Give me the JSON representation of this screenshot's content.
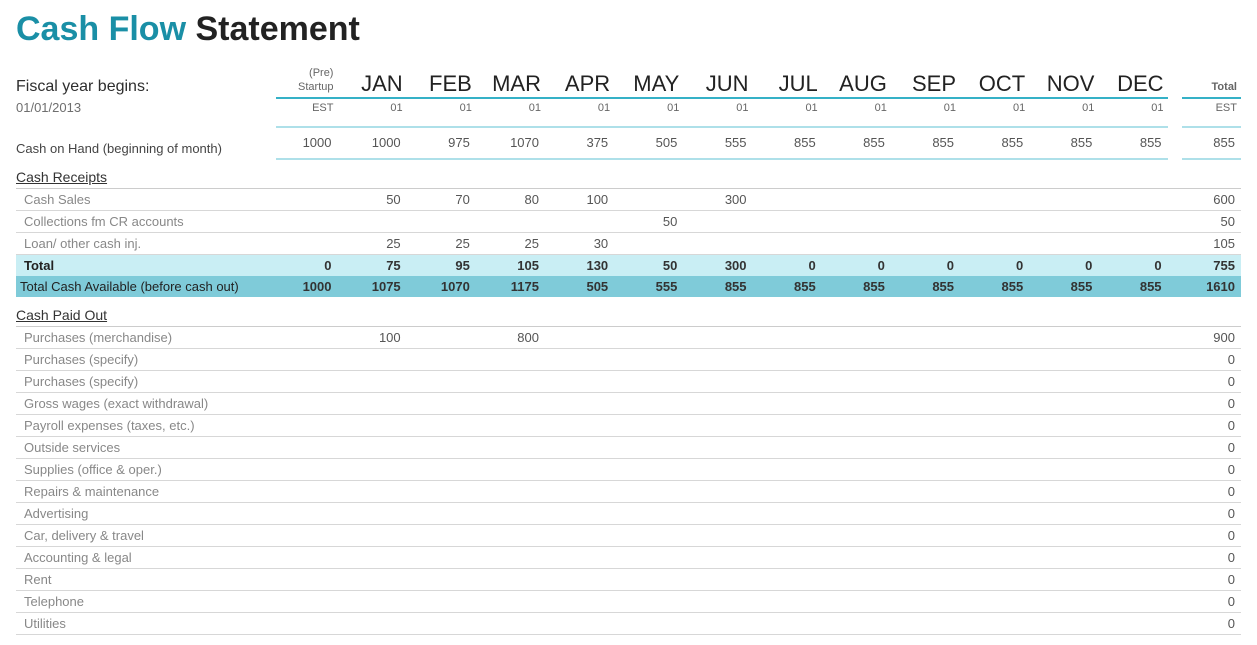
{
  "title": {
    "part1": "Cash Flow",
    "part2": " Statement"
  },
  "fiscal_year_label": "Fiscal year begins:",
  "fiscal_year_date": "01/01/2013",
  "columns": {
    "pre": {
      "line1": "(Pre)",
      "line2": "Startup",
      "sub": "EST"
    },
    "months": [
      "JAN",
      "FEB",
      "MAR",
      "APR",
      "MAY",
      "JUN",
      "JUL",
      "AUG",
      "SEP",
      "OCT",
      "NOV",
      "DEC"
    ],
    "month_sub": "01",
    "total": {
      "top": "Total",
      "sub": "EST"
    }
  },
  "cash_on_hand": {
    "label": "Cash on Hand (beginning of month)",
    "values": [
      "1000",
      "1000",
      "975",
      "1070",
      "375",
      "505",
      "555",
      "855",
      "855",
      "855",
      "855",
      "855",
      "855"
    ],
    "total": "855"
  },
  "cash_receipts": {
    "section_label": "Cash Receipts",
    "rows": [
      {
        "label": "Cash Sales",
        "values": [
          "",
          "50",
          "70",
          "80",
          "100",
          "",
          "300",
          "",
          "",
          "",
          "",
          "",
          ""
        ],
        "total": "600"
      },
      {
        "label": "Collections fm CR accounts",
        "values": [
          "",
          "",
          "",
          "",
          "",
          "50",
          "",
          "",
          "",
          "",
          "",
          "",
          ""
        ],
        "total": "50"
      },
      {
        "label": "Loan/ other cash inj.",
        "values": [
          "",
          "25",
          "25",
          "25",
          "30",
          "",
          "",
          "",
          "",
          "",
          "",
          "",
          ""
        ],
        "total": "105"
      }
    ],
    "subtotal": {
      "label": "Total",
      "values": [
        "0",
        "75",
        "95",
        "105",
        "130",
        "50",
        "300",
        "0",
        "0",
        "0",
        "0",
        "0",
        "0"
      ],
      "total": "755"
    },
    "avail": {
      "label": "Total Cash Available (before cash out)",
      "values": [
        "1000",
        "1075",
        "1070",
        "1175",
        "505",
        "555",
        "855",
        "855",
        "855",
        "855",
        "855",
        "855",
        "855"
      ],
      "total": "1610"
    }
  },
  "cash_paid_out": {
    "section_label": "Cash Paid Out",
    "rows": [
      {
        "label": "Purchases (merchandise)",
        "values": [
          "",
          "100",
          "",
          "800",
          "",
          "",
          "",
          "",
          "",
          "",
          "",
          "",
          ""
        ],
        "total": "900"
      },
      {
        "label": "Purchases (specify)",
        "values": [
          "",
          "",
          "",
          "",
          "",
          "",
          "",
          "",
          "",
          "",
          "",
          "",
          ""
        ],
        "total": "0"
      },
      {
        "label": "Purchases (specify)",
        "values": [
          "",
          "",
          "",
          "",
          "",
          "",
          "",
          "",
          "",
          "",
          "",
          "",
          ""
        ],
        "total": "0"
      },
      {
        "label": "Gross wages (exact withdrawal)",
        "values": [
          "",
          "",
          "",
          "",
          "",
          "",
          "",
          "",
          "",
          "",
          "",
          "",
          ""
        ],
        "total": "0"
      },
      {
        "label": "Payroll expenses (taxes, etc.)",
        "values": [
          "",
          "",
          "",
          "",
          "",
          "",
          "",
          "",
          "",
          "",
          "",
          "",
          ""
        ],
        "total": "0"
      },
      {
        "label": "Outside services",
        "values": [
          "",
          "",
          "",
          "",
          "",
          "",
          "",
          "",
          "",
          "",
          "",
          "",
          ""
        ],
        "total": "0"
      },
      {
        "label": "Supplies (office & oper.)",
        "values": [
          "",
          "",
          "",
          "",
          "",
          "",
          "",
          "",
          "",
          "",
          "",
          "",
          ""
        ],
        "total": "0"
      },
      {
        "label": "Repairs & maintenance",
        "values": [
          "",
          "",
          "",
          "",
          "",
          "",
          "",
          "",
          "",
          "",
          "",
          "",
          ""
        ],
        "total": "0"
      },
      {
        "label": "Advertising",
        "values": [
          "",
          "",
          "",
          "",
          "",
          "",
          "",
          "",
          "",
          "",
          "",
          "",
          ""
        ],
        "total": "0"
      },
      {
        "label": "Car, delivery & travel",
        "values": [
          "",
          "",
          "",
          "",
          "",
          "",
          "",
          "",
          "",
          "",
          "",
          "",
          ""
        ],
        "total": "0"
      },
      {
        "label": "Accounting & legal",
        "values": [
          "",
          "",
          "",
          "",
          "",
          "",
          "",
          "",
          "",
          "",
          "",
          "",
          ""
        ],
        "total": "0"
      },
      {
        "label": "Rent",
        "values": [
          "",
          "",
          "",
          "",
          "",
          "",
          "",
          "",
          "",
          "",
          "",
          "",
          ""
        ],
        "total": "0"
      },
      {
        "label": "Telephone",
        "values": [
          "",
          "",
          "",
          "",
          "",
          "",
          "",
          "",
          "",
          "",
          "",
          "",
          ""
        ],
        "total": "0"
      },
      {
        "label": "Utilities",
        "values": [
          "",
          "",
          "",
          "",
          "",
          "",
          "",
          "",
          "",
          "",
          "",
          "",
          ""
        ],
        "total": "0"
      }
    ]
  },
  "style": {
    "accent_color": "#1a8fa6",
    "header_underline": "#35b1c7",
    "highlight_light": "#c9eef4",
    "highlight_dark": "#7fcbd9",
    "grid_color": "#d7d7d7",
    "text_muted": "#888888",
    "background": "#ffffff"
  }
}
